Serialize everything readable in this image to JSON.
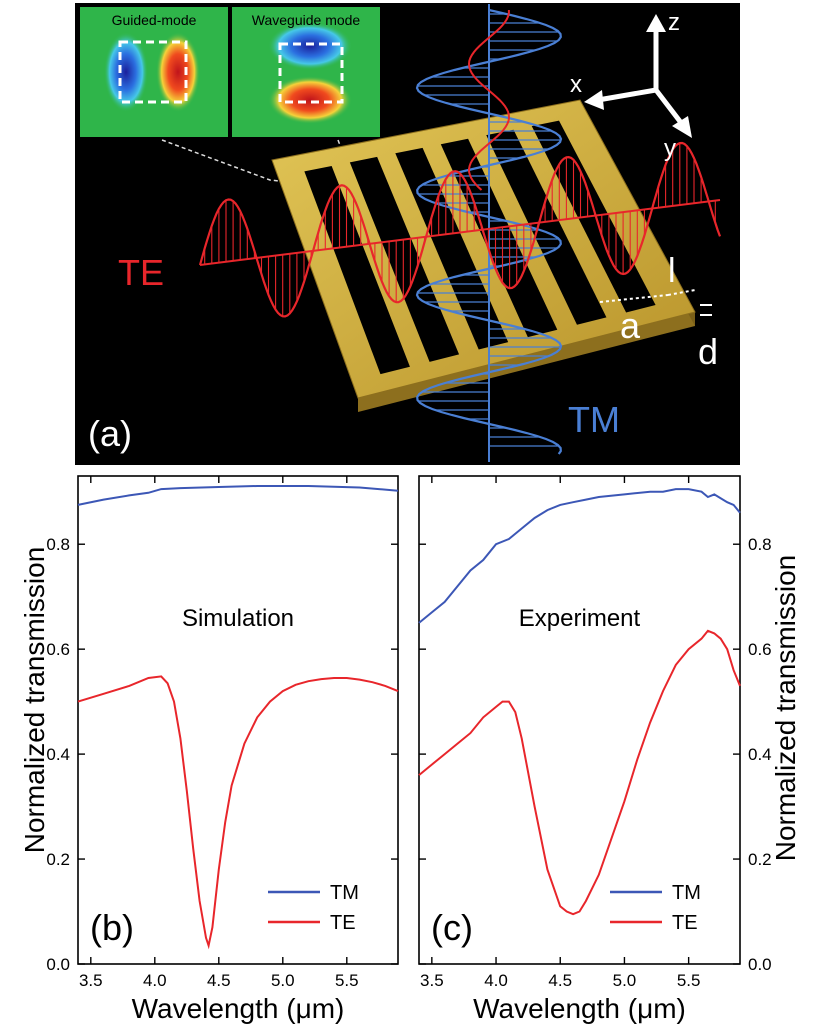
{
  "panel_a": {
    "label": "(a)",
    "inset_left_title": "Guided-mode",
    "inset_right_title": "Waveguide mode",
    "te_label": "TE",
    "tm_label": "TM",
    "axes": [
      "x",
      "y",
      "z"
    ],
    "dim_labels": [
      "a",
      "l",
      "d"
    ],
    "colors": {
      "background": "#000000",
      "grating": "#d4b33a",
      "te": "#e8262b",
      "tm": "#4a7fd4",
      "inset_bg": "#2fb54a"
    }
  },
  "chart_data": [
    {
      "type": "line",
      "panel_label": "(b)",
      "annotation": "Simulation",
      "xlabel": "Wavelength (μm)",
      "ylabel": "Normalized transmission",
      "xlim": [
        3.4,
        5.9
      ],
      "ylim": [
        0.0,
        0.93
      ],
      "xticks": [
        "3.5",
        "4.0",
        "4.5",
        "5.0",
        "5.5"
      ],
      "yticks": [
        "0.0",
        "0.2",
        "0.4",
        "0.6",
        "0.8"
      ],
      "legend_position": "bottom-right",
      "series": [
        {
          "name": "TM",
          "color": "#3c57b6",
          "x": [
            3.4,
            3.6,
            3.8,
            3.95,
            4.05,
            4.2,
            4.5,
            4.8,
            5.2,
            5.6,
            5.9
          ],
          "y": [
            0.875,
            0.885,
            0.893,
            0.898,
            0.905,
            0.907,
            0.909,
            0.911,
            0.911,
            0.908,
            0.902
          ]
        },
        {
          "name": "TE",
          "color": "#e8262b",
          "x": [
            3.4,
            3.6,
            3.8,
            3.95,
            4.05,
            4.1,
            4.15,
            4.2,
            4.25,
            4.3,
            4.35,
            4.4,
            4.42,
            4.45,
            4.5,
            4.55,
            4.6,
            4.7,
            4.8,
            4.9,
            5.0,
            5.1,
            5.2,
            5.3,
            5.4,
            5.5,
            5.6,
            5.7,
            5.8,
            5.9
          ],
          "y": [
            0.5,
            0.515,
            0.53,
            0.545,
            0.548,
            0.535,
            0.5,
            0.43,
            0.33,
            0.22,
            0.12,
            0.05,
            0.035,
            0.07,
            0.18,
            0.27,
            0.34,
            0.42,
            0.47,
            0.5,
            0.52,
            0.532,
            0.539,
            0.543,
            0.545,
            0.545,
            0.542,
            0.537,
            0.53,
            0.52
          ]
        }
      ]
    },
    {
      "type": "line",
      "panel_label": "(c)",
      "annotation": "Experiment",
      "xlabel": "Wavelength (μm)",
      "ylabel": "Normalized transmission",
      "xlim": [
        3.4,
        5.9
      ],
      "ylim": [
        0.0,
        0.93
      ],
      "xticks": [
        "3.5",
        "4.0",
        "4.5",
        "5.0",
        "5.5"
      ],
      "yticks": [
        "0.0",
        "0.2",
        "0.4",
        "0.6",
        "0.8"
      ],
      "legend_position": "bottom-right",
      "series": [
        {
          "name": "TM",
          "color": "#3c57b6",
          "x": [
            3.4,
            3.5,
            3.6,
            3.7,
            3.8,
            3.9,
            4.0,
            4.1,
            4.2,
            4.3,
            4.4,
            4.5,
            4.6,
            4.7,
            4.8,
            5.0,
            5.2,
            5.3,
            5.4,
            5.5,
            5.6,
            5.65,
            5.7,
            5.8,
            5.85,
            5.9
          ],
          "y": [
            0.65,
            0.67,
            0.69,
            0.72,
            0.75,
            0.77,
            0.8,
            0.81,
            0.83,
            0.85,
            0.865,
            0.875,
            0.88,
            0.885,
            0.89,
            0.895,
            0.9,
            0.9,
            0.905,
            0.905,
            0.9,
            0.89,
            0.895,
            0.88,
            0.875,
            0.86
          ]
        },
        {
          "name": "TE",
          "color": "#e8262b",
          "x": [
            3.4,
            3.5,
            3.6,
            3.7,
            3.8,
            3.9,
            4.0,
            4.05,
            4.1,
            4.15,
            4.2,
            4.3,
            4.4,
            4.5,
            4.55,
            4.6,
            4.65,
            4.7,
            4.8,
            4.9,
            5.0,
            5.1,
            5.2,
            5.3,
            5.4,
            5.5,
            5.6,
            5.65,
            5.7,
            5.75,
            5.8,
            5.85,
            5.9
          ],
          "y": [
            0.36,
            0.38,
            0.4,
            0.42,
            0.44,
            0.47,
            0.49,
            0.5,
            0.5,
            0.48,
            0.43,
            0.3,
            0.18,
            0.11,
            0.1,
            0.095,
            0.1,
            0.12,
            0.17,
            0.24,
            0.31,
            0.39,
            0.46,
            0.52,
            0.57,
            0.6,
            0.62,
            0.635,
            0.63,
            0.62,
            0.6,
            0.56,
            0.53
          ]
        }
      ]
    }
  ]
}
